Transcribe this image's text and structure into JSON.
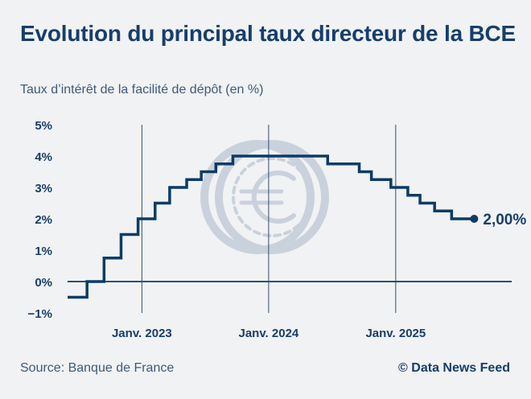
{
  "header": {
    "title": "Evolution du principal taux directeur de la BCE",
    "subtitle": "Taux d’intérêt de la facilité de dépôt (en %)"
  },
  "footer": {
    "source": "Source: Banque de France",
    "credit": "© Data News Feed"
  },
  "colors": {
    "line": "#0d3b66",
    "axis": "#2d4f74",
    "text": "#173e6a",
    "watermark": "#c9d2dc",
    "background": "#f1f2f3"
  },
  "watermark_icon": "euro-coin-icon",
  "chart_data": {
    "type": "line",
    "step": true,
    "title": "Evolution du principal taux directeur de la BCE",
    "subtitle": "Taux d’intérêt de la facilité de dépôt (en %)",
    "ylim": [
      -1,
      5
    ],
    "yticks": [
      -1,
      0,
      1,
      2,
      3,
      4,
      5
    ],
    "ytick_labels": [
      "−1%",
      "0%",
      "1%",
      "2%",
      "3%",
      "4%",
      "5%"
    ],
    "xlim": [
      "2022-06-01",
      "2025-12-01"
    ],
    "xticks": [
      "2023-01-01",
      "2024-01-01",
      "2025-01-01"
    ],
    "xtick_labels": [
      "Janv. 2023",
      "Janv. 2024",
      "Janv. 2025"
    ],
    "grid": "vertical at x ticks",
    "end_label": "2,00%",
    "series": [
      {
        "points": [
          {
            "x": "2022-06-01",
            "y": -0.5
          },
          {
            "x": "2022-07-27",
            "y": 0.0
          },
          {
            "x": "2022-09-14",
            "y": 0.75
          },
          {
            "x": "2022-11-02",
            "y": 1.5
          },
          {
            "x": "2022-12-21",
            "y": 2.0
          },
          {
            "x": "2023-02-08",
            "y": 2.5
          },
          {
            "x": "2023-03-22",
            "y": 3.0
          },
          {
            "x": "2023-05-10",
            "y": 3.25
          },
          {
            "x": "2023-06-21",
            "y": 3.5
          },
          {
            "x": "2023-08-02",
            "y": 3.75
          },
          {
            "x": "2023-09-20",
            "y": 4.0
          },
          {
            "x": "2024-06-19",
            "y": 3.75
          },
          {
            "x": "2024-09-18",
            "y": 3.5
          },
          {
            "x": "2024-10-23",
            "y": 3.25
          },
          {
            "x": "2024-12-18",
            "y": 3.0
          },
          {
            "x": "2025-02-05",
            "y": 2.75
          },
          {
            "x": "2025-03-12",
            "y": 2.5
          },
          {
            "x": "2025-04-23",
            "y": 2.25
          },
          {
            "x": "2025-06-11",
            "y": 2.0
          },
          {
            "x": "2025-08-15",
            "y": 2.0
          }
        ]
      }
    ]
  }
}
